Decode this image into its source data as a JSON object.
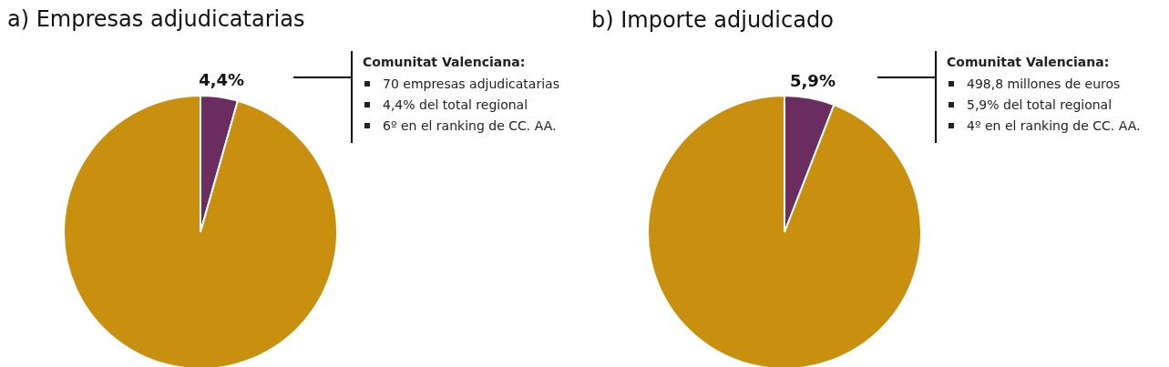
{
  "chart_data": [
    {
      "type": "pie",
      "title": "a) Empresas adjudicatarias",
      "categories": [
        null,
        null
      ],
      "values": [
        4.4,
        95.6
      ],
      "colors": [
        "#6b2d5f",
        "#c8900e"
      ],
      "value_labels": [
        "4,4%",
        null
      ],
      "annotations": [
        "Comunitat Valenciana:",
        "70 empresas adjudicatarias",
        "4,4% del total regional",
        "6º en el ranking de CC. AA."
      ]
    },
    {
      "type": "pie",
      "title": "b) Importe adjudicado",
      "categories": [
        null,
        null
      ],
      "values": [
        5.9,
        94.1
      ],
      "colors": [
        "#6b2d5f",
        "#c8900e"
      ],
      "value_labels": [
        "5,9%",
        null
      ],
      "annotations": [
        "Comunitat Valenciana:",
        "498,8  millones de euros",
        "5,9% del total regional",
        "4º en el ranking de CC. AA."
      ]
    }
  ]
}
